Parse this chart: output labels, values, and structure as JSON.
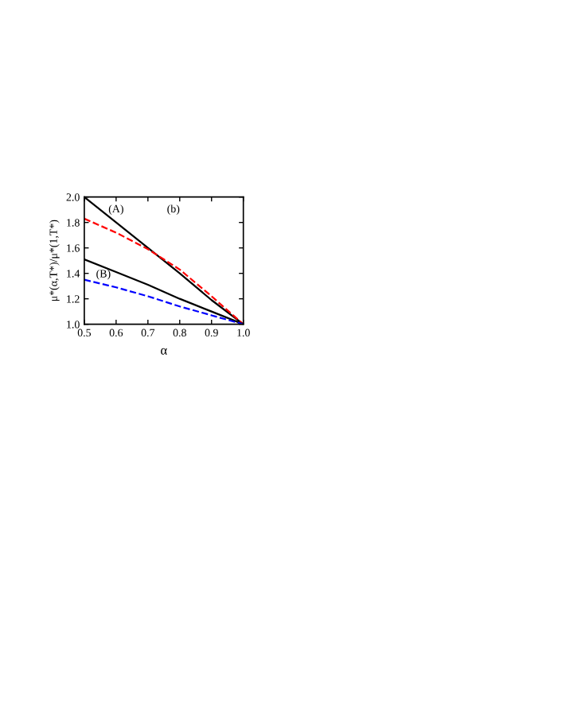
{
  "chart_data": {
    "type": "line",
    "xlabel": "α",
    "ylabel": "μ*(α,T*)/μ*(1,T*)",
    "x": [
      0.5,
      0.6,
      0.7,
      0.8,
      0.9,
      1.0
    ],
    "series": [
      {
        "color": "#000000",
        "line_style": "solid",
        "values": [
          2.0,
          1.8,
          1.6,
          1.4,
          1.19,
          1.0
        ]
      },
      {
        "color": "#ff0000",
        "line_style": "dashed",
        "values": [
          1.83,
          1.72,
          1.59,
          1.43,
          1.22,
          1.0
        ]
      },
      {
        "color": "#000000",
        "line_style": "solid",
        "values": [
          1.51,
          1.41,
          1.31,
          1.2,
          1.1,
          1.0
        ]
      },
      {
        "color": "#0000ff",
        "line_style": "dashed",
        "values": [
          1.35,
          1.29,
          1.22,
          1.14,
          1.07,
          1.0
        ]
      }
    ],
    "annotations": [
      "(A)",
      "(b)",
      "(B)"
    ],
    "xlim": [
      0.5,
      1.0
    ],
    "ylim": [
      1.0,
      2.0
    ],
    "xticks": [
      0.5,
      0.6,
      0.7,
      0.8,
      0.9,
      {
        "value": 1,
        "label": "1.0"
      }
    ],
    "yticks": [
      {
        "value": 1,
        "label": "1.0"
      },
      1.2,
      1.4,
      1.6,
      1.8,
      {
        "value": 2,
        "label": "2.0"
      }
    ],
    "grid": false,
    "legend": false
  }
}
